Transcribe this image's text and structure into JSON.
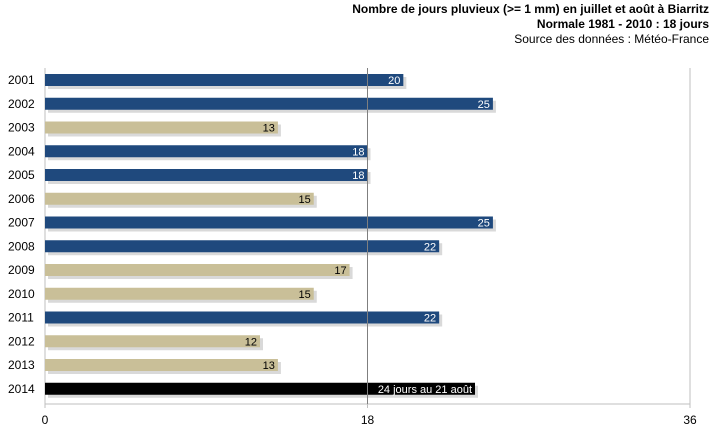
{
  "header": {
    "title": "Nombre de jours pluvieux (>= 1 mm) en juillet et août à Biarritz",
    "subtitle": "Normale 1981 - 2010 : 18 jours",
    "source": "Source des données : Météo-France"
  },
  "colors": {
    "above": "#1f497d",
    "below": "#c9bf98",
    "current": "#000000",
    "reference_line": "#7f7f7f",
    "axis": "#bfbfbf"
  },
  "chart_data": {
    "type": "bar",
    "orientation": "horizontal",
    "title": "Nombre de jours pluvieux (>= 1 mm) en juillet et août à Biarritz",
    "subtitle": "Normale 1981 - 2010 : 18 jours",
    "categories": [
      "2001",
      "2002",
      "2003",
      "2004",
      "2005",
      "2006",
      "2007",
      "2008",
      "2009",
      "2010",
      "2011",
      "2012",
      "2013",
      "2014"
    ],
    "values": [
      20,
      25,
      13,
      18,
      18,
      15,
      25,
      22,
      17,
      15,
      22,
      12,
      13,
      24
    ],
    "value_labels": [
      "20",
      "25",
      "13",
      "18",
      "18",
      "15",
      "25",
      "22",
      "17",
      "15",
      "22",
      "12",
      "13",
      "24 jours au 21 août"
    ],
    "xlim": [
      0,
      36
    ],
    "xticks": [
      "0",
      "18",
      "36"
    ],
    "reference_value": 18,
    "grid": false
  }
}
